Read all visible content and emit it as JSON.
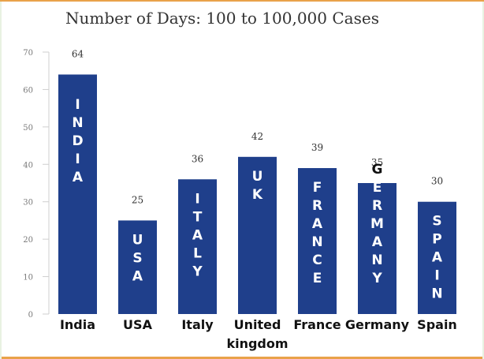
{
  "chart_data": {
    "type": "bar",
    "title": "Number of Days: 100 to 100,000 Cases",
    "xlabel": "",
    "ylabel": "",
    "ylim": [
      0,
      70
    ],
    "yticks": [
      0,
      10,
      20,
      30,
      40,
      50,
      60,
      70
    ],
    "grid": false,
    "bar_color": "#1f3f8b",
    "categories": [
      "India",
      "USA",
      "Italy",
      "United kingdom",
      "France",
      "Germany",
      "Spain"
    ],
    "in_bar_labels": [
      "INDIA",
      "USA",
      "ITALY",
      "UK",
      "FRANCE",
      "GERMANY",
      "SPAIN"
    ],
    "values": [
      64,
      25,
      36,
      42,
      39,
      35,
      30
    ]
  }
}
